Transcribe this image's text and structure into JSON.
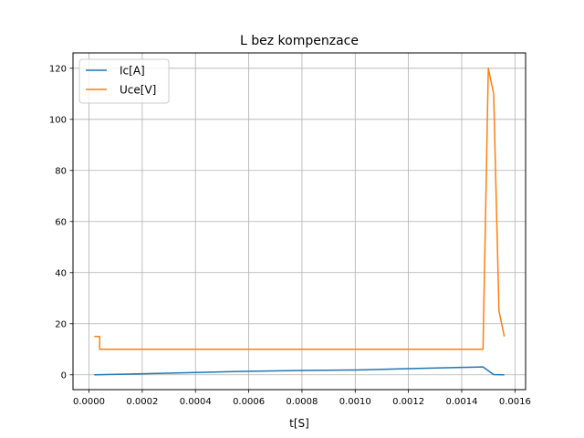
{
  "chart_data": {
    "type": "line",
    "title": "L bez kompenzace",
    "xlabel": "t[S]",
    "ylabel": "",
    "xlim": [
      -6e-05,
      0.00164
    ],
    "ylim": [
      -5.8,
      126
    ],
    "xticks": [
      0.0,
      0.0002,
      0.0004,
      0.0006,
      0.0008,
      0.001,
      0.0012,
      0.0014,
      0.0016
    ],
    "xtick_labels": [
      "0.0000",
      "0.0002",
      "0.0004",
      "0.0006",
      "0.0008",
      "0.0010",
      "0.0012",
      "0.0014",
      "0.0016"
    ],
    "yticks": [
      0,
      20,
      40,
      60,
      80,
      100,
      120
    ],
    "ytick_labels": [
      "0",
      "20",
      "40",
      "60",
      "80",
      "100",
      "120"
    ],
    "grid": true,
    "legend_position": "upper-left",
    "series": [
      {
        "name": "Ic[A]",
        "color": "#1f77b4",
        "x": [
          2e-05,
          0.0002,
          0.0004,
          0.0006,
          0.0008,
          0.001,
          0.0012,
          0.0014,
          0.00148,
          0.00152,
          0.00156
        ],
        "y": [
          0.0,
          0.4,
          0.9,
          1.4,
          1.7,
          1.9,
          2.4,
          2.9,
          3.1,
          0.1,
          0.0
        ]
      },
      {
        "name": "Uce[V]",
        "color": "#ff7f0e",
        "x": [
          2e-05,
          4e-05,
          4e-05,
          0.00148,
          0.0015,
          0.00152,
          0.00154,
          0.00156
        ],
        "y": [
          15,
          15,
          10,
          10,
          120,
          110,
          25,
          15
        ]
      }
    ]
  }
}
